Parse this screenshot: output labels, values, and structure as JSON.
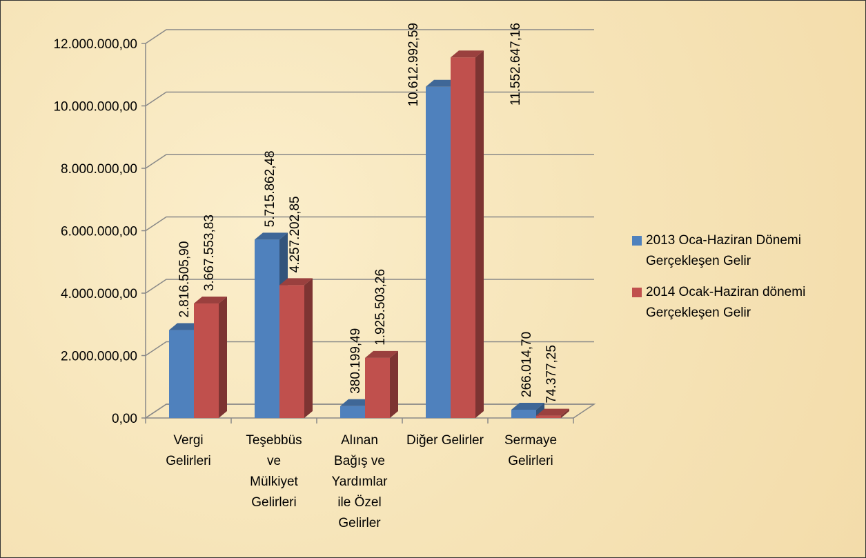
{
  "chart_data": {
    "type": "bar3d",
    "categories": [
      "Vergi\nGelirleri",
      "Teşebbüs\nve\nMülkiyet\nGelirleri",
      "Alınan\nBağış ve\nYardımlar\nile Özel\nGelirler",
      "Diğer Gelirler",
      "Sermaye\nGelirleri"
    ],
    "series": [
      {
        "name": "2013 Oca-Haziran Dönemi Gerçekleşen Gelir",
        "color": "#4f81bd",
        "values": [
          2816505.9,
          5715862.48,
          380199.49,
          10612992.59,
          266014.7
        ],
        "value_labels": [
          "2.816.505,90",
          "5.715.862,48",
          "380.199,49",
          "10.612.992,59",
          "266.014,70"
        ]
      },
      {
        "name": "2014 Ocak-Haziran dönemi Gerçekleşen Gelir",
        "color": "#c0504d",
        "values": [
          3667553.83,
          4257202.85,
          1925503.26,
          11552647.16,
          74377.25
        ],
        "value_labels": [
          "3.667.553,83",
          "4.257.202,85",
          "1.925.503,26",
          "11.552.647,16",
          "74.377,25"
        ]
      }
    ],
    "ylim": [
      0,
      12000000
    ],
    "yticks": [
      {
        "value": 0,
        "label": "0,00"
      },
      {
        "value": 2000000,
        "label": "2.000.000,00"
      },
      {
        "value": 4000000,
        "label": "4.000.000,00"
      },
      {
        "value": 6000000,
        "label": "6.000.000,00"
      },
      {
        "value": 8000000,
        "label": "8.000.000,00"
      },
      {
        "value": 10000000,
        "label": "10.000.000,00"
      },
      {
        "value": 12000000,
        "label": "12.000.000,00"
      }
    ],
    "grid": true,
    "legend": "right"
  }
}
